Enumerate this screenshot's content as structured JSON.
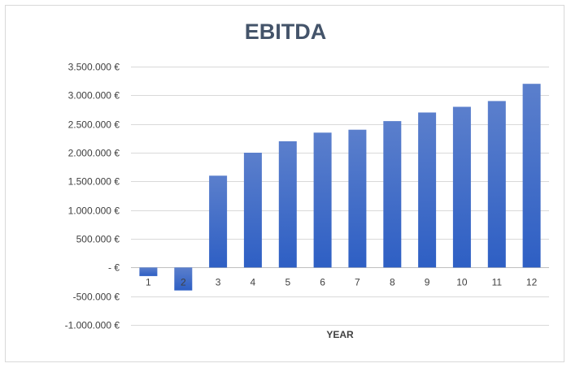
{
  "chart_data": {
    "type": "bar",
    "title": "EBITDA",
    "xlabel": "YEAR",
    "ylabel": "",
    "categories": [
      "1",
      "2",
      "3",
      "4",
      "5",
      "6",
      "7",
      "8",
      "9",
      "10",
      "11",
      "12"
    ],
    "values": [
      -150000,
      -400000,
      1600000,
      2000000,
      2200000,
      2350000,
      2400000,
      2550000,
      2700000,
      2800000,
      2900000,
      3200000
    ],
    "ylim": [
      -1000000,
      3500000
    ],
    "yticks": [
      3500000,
      3000000,
      2500000,
      2000000,
      1500000,
      1000000,
      500000,
      0,
      -500000,
      -1000000
    ],
    "ytick_labels": [
      "3.500.000 €",
      "3.000.000 €",
      "2.500.000 €",
      "2.000.000 €",
      "1.500.000 €",
      "1.000.000 €",
      "500.000 €",
      "-  €",
      "-500.000 €",
      "-1.000.000 €"
    ],
    "grid": true,
    "legend": "none",
    "bar_color_top": "#5b7fcc",
    "bar_color_bottom": "#2e5fc4"
  }
}
